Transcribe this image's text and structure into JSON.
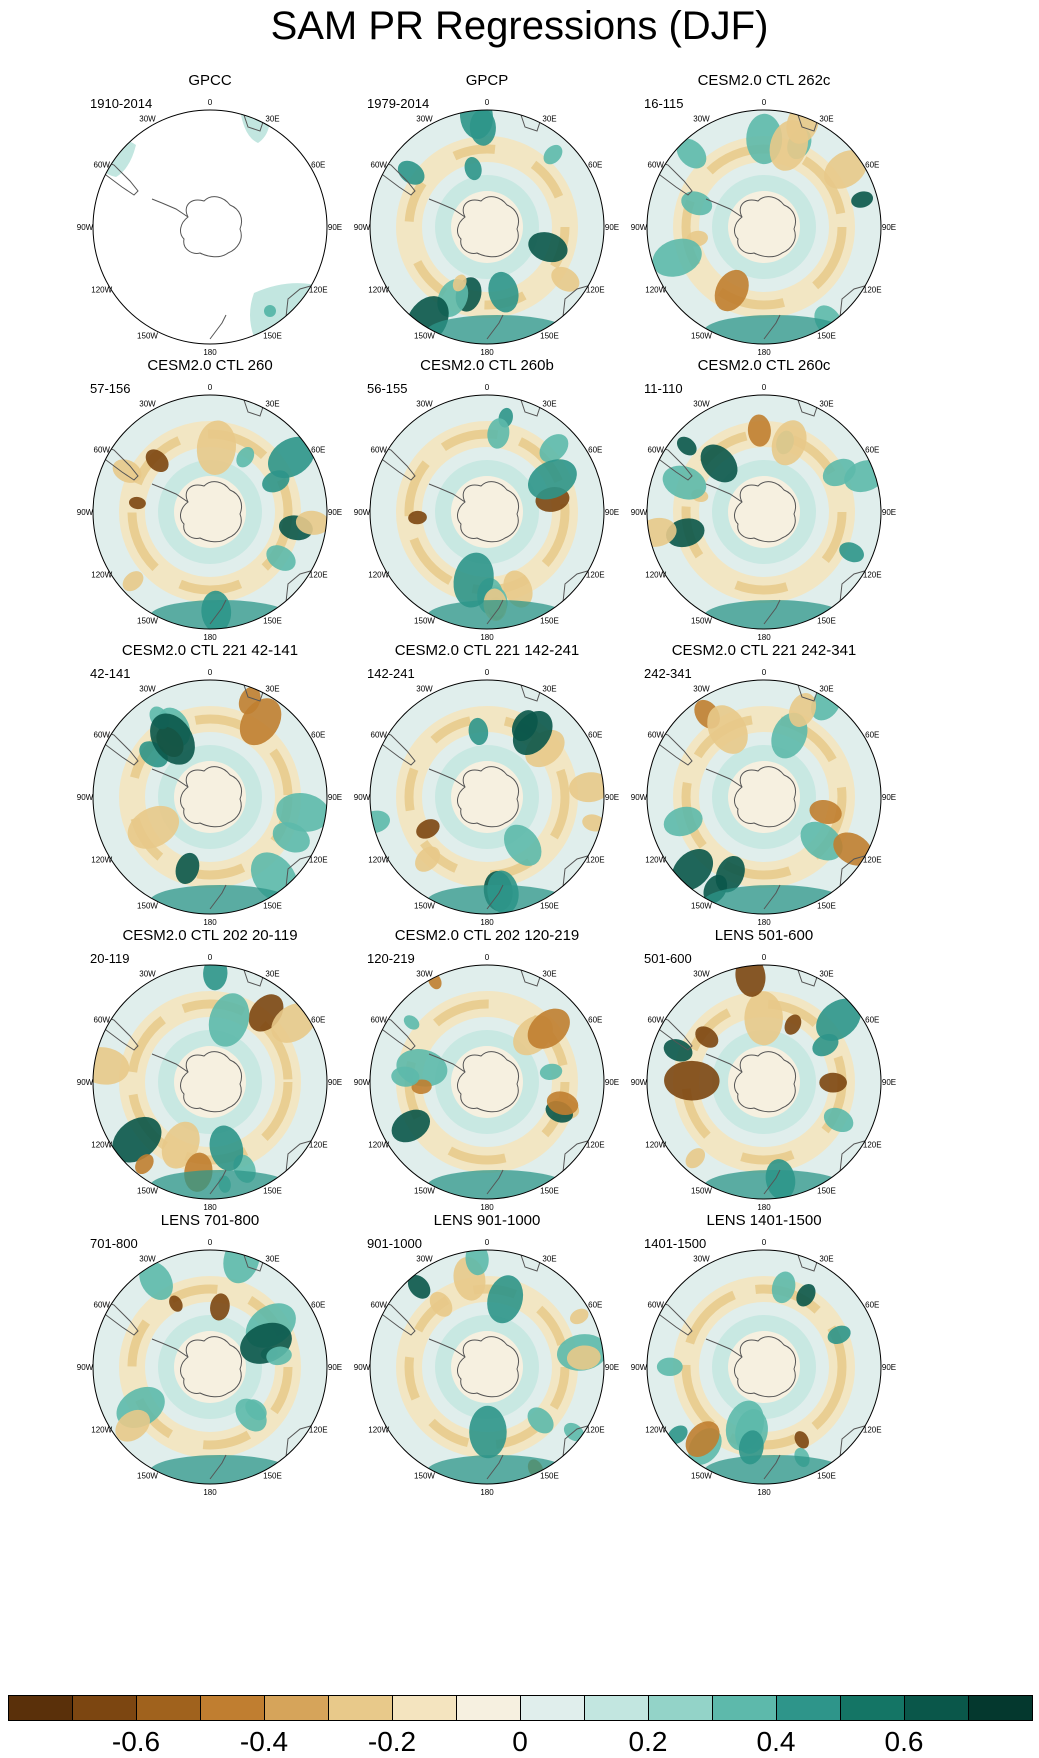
{
  "title": "SAM PR Regressions (DJF)",
  "colorbar": {
    "levels": [
      -0.7,
      -0.6,
      -0.5,
      -0.4,
      -0.3,
      -0.2,
      -0.1,
      0,
      0.1,
      0.2,
      0.3,
      0.4,
      0.5,
      0.6,
      0.7
    ],
    "colors": [
      "#5a300a",
      "#7c4611",
      "#a0621d",
      "#c07e30",
      "#d6a45a",
      "#e8c98a",
      "#f4e4bf",
      "#f6f0e0",
      "#e0eeec",
      "#c2e6e0",
      "#93d3c8",
      "#5db9ab",
      "#2e958a",
      "#147565",
      "#0a574a",
      "#04382e"
    ],
    "tick_labels": [
      "-0.6",
      "-0.4",
      "-0.2",
      "0",
      "0.2",
      "0.4",
      "0.6"
    ]
  },
  "longitude_labels": [
    "0",
    "30E",
    "60E",
    "90E",
    "120E",
    "150E",
    "180",
    "150W",
    "120W",
    "90W",
    "60W",
    "30W"
  ],
  "panels": [
    {
      "title": "GPCC",
      "period": "1910-2014",
      "land_only": true
    },
    {
      "title": "GPCP",
      "period": "1979-2014",
      "land_only": false
    },
    {
      "title": "CESM2.0 CTL 262c",
      "period": "16-115",
      "land_only": false
    },
    {
      "title": "CESM2.0 CTL 260",
      "period": "57-156",
      "land_only": false
    },
    {
      "title": "CESM2.0 CTL 260b",
      "period": "56-155",
      "land_only": false
    },
    {
      "title": "CESM2.0 CTL 260c",
      "period": "11-110",
      "land_only": false
    },
    {
      "title": "CESM2.0 CTL 221 42-141",
      "period": "42-141",
      "land_only": false
    },
    {
      "title": "CESM2.0 CTL 221 142-241",
      "period": "142-241",
      "land_only": false
    },
    {
      "title": "CESM2.0 CTL 221 242-341",
      "period": "242-341",
      "land_only": false
    },
    {
      "title": "CESM2.0 CTL 202 20-119",
      "period": "20-119",
      "land_only": false
    },
    {
      "title": "CESM2.0 CTL 202 120-219",
      "period": "120-219",
      "land_only": false
    },
    {
      "title": "LENS 501-600",
      "period": "501-600",
      "land_only": false
    },
    {
      "title": "LENS 701-800",
      "period": "701-800",
      "land_only": false
    },
    {
      "title": "LENS 901-1000",
      "period": "901-1000",
      "land_only": false
    },
    {
      "title": "LENS 1401-1500",
      "period": "1401-1500",
      "land_only": false
    }
  ]
}
